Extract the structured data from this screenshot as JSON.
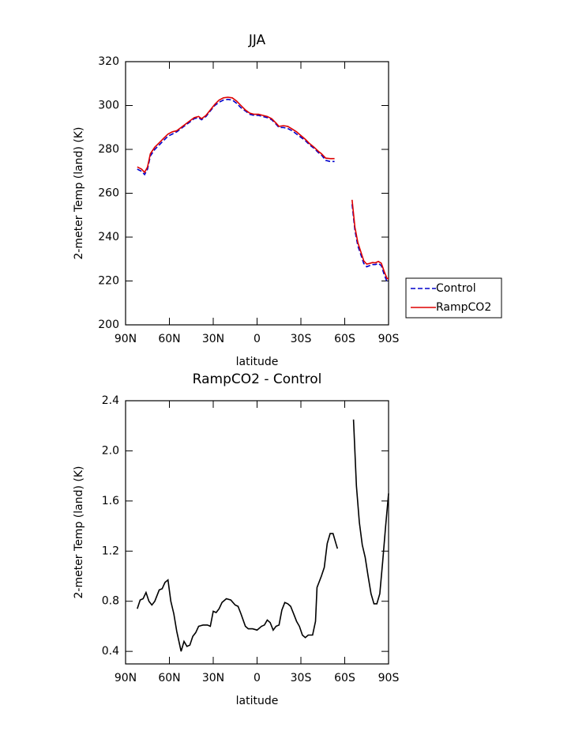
{
  "chart_data": [
    {
      "type": "line",
      "title": "JJA",
      "x_label": "latitude",
      "y_label": "2-meter Temp (land) (K)",
      "x": [
        82,
        79,
        77,
        75,
        73,
        70,
        67,
        64,
        61,
        58,
        55,
        52,
        49,
        46,
        43,
        40,
        38,
        35,
        32,
        29,
        26,
        23,
        20,
        17,
        14,
        11,
        8,
        5,
        2,
        -1,
        -4,
        -7,
        -10,
        -13,
        -15,
        -18,
        -21,
        -24,
        -27,
        -30,
        -33,
        -36,
        -39,
        -42,
        -44,
        -47,
        -50,
        -53,
        -58,
        -65,
        -67,
        -69,
        -71,
        -73,
        -75,
        -77,
        -79,
        -81,
        -83,
        -85,
        -87,
        -89,
        -90
      ],
      "series": [
        {
          "name": "Control",
          "color": "#0000cc",
          "linestyle": "dashed",
          "values": [
            271,
            270,
            268.5,
            271,
            277,
            280,
            282,
            284,
            286,
            287,
            288,
            289.5,
            291,
            292.5,
            294,
            294.5,
            293.5,
            295,
            297.5,
            300,
            301.5,
            302.5,
            302.8,
            302.5,
            301,
            299,
            297.5,
            296,
            295.5,
            295.5,
            295,
            294.5,
            293.5,
            291.5,
            290,
            290,
            289.5,
            288.5,
            287,
            285.5,
            284,
            282,
            280.5,
            278.5,
            277.5,
            275,
            274.5,
            274.5,
            null,
            255,
            243,
            236,
            232,
            228,
            226.5,
            227,
            227.5,
            227.5,
            228,
            227,
            223,
            219.5,
            219.5
          ]
        },
        {
          "name": "RampCO2",
          "color": "#dd0000",
          "linestyle": "solid",
          "values": [
            272,
            271,
            269.5,
            272,
            278,
            281,
            283,
            285,
            287,
            288,
            288.5,
            290,
            291.5,
            293,
            294.5,
            295,
            294,
            295.5,
            298,
            300.5,
            302.5,
            303.5,
            303.8,
            303.5,
            302,
            300,
            298,
            296.5,
            296,
            296,
            295.5,
            295,
            294,
            292,
            290.5,
            290.8,
            290.5,
            289.3,
            288,
            286.3,
            284.6,
            282.6,
            281,
            279.1,
            278.1,
            276,
            275.8,
            275.8,
            null,
            257,
            244.5,
            237.5,
            233.3,
            229.2,
            227.7,
            228,
            228.4,
            228.3,
            228.9,
            228.1,
            224.4,
            221,
            221.2
          ]
        }
      ],
      "xlim": [
        90,
        -90
      ],
      "xticks": [
        {
          "value": 90,
          "label": "90N"
        },
        {
          "value": 60,
          "label": "60N"
        },
        {
          "value": 30,
          "label": "30N"
        },
        0,
        {
          "value": -30,
          "label": "30S"
        },
        {
          "value": -60,
          "label": "60S"
        },
        {
          "value": -90,
          "label": "90S"
        }
      ],
      "ylim": [
        200,
        320
      ],
      "yticks": [
        200,
        220,
        240,
        260,
        280,
        300,
        320
      ],
      "legend": "right"
    },
    {
      "type": "line",
      "title": "RampCO2 - Control",
      "x_label": "latitude",
      "y_label": "2-meter Temp (land) (K)",
      "x": [
        82,
        80,
        78,
        76,
        74,
        72,
        70,
        67,
        65,
        63,
        61,
        59,
        57,
        55,
        52,
        50,
        48,
        46,
        44,
        42,
        40,
        37,
        34,
        32,
        30,
        28,
        26,
        24,
        21,
        18,
        15,
        13,
        11,
        8,
        6,
        3,
        0,
        -3,
        -5,
        -7,
        -9,
        -11,
        -13,
        -15,
        -17,
        -19,
        -21,
        -23,
        -25,
        -27,
        -29,
        -31,
        -33,
        -35,
        -38,
        -40,
        -41,
        -44,
        -46,
        -48,
        -50,
        -52,
        -54,
        -55,
        -60,
        -66,
        -68,
        -70,
        -72,
        -74,
        -76,
        -78,
        -80,
        -82,
        -84,
        -86,
        -88,
        -90
      ],
      "series": [
        {
          "color": "#000000",
          "linestyle": "solid",
          "values": [
            0.74,
            0.81,
            0.82,
            0.87,
            0.8,
            0.77,
            0.8,
            0.89,
            0.9,
            0.95,
            0.97,
            0.8,
            0.7,
            0.56,
            0.4,
            0.48,
            0.44,
            0.45,
            0.52,
            0.55,
            0.6,
            0.61,
            0.61,
            0.6,
            0.72,
            0.71,
            0.74,
            0.79,
            0.82,
            0.81,
            0.77,
            0.76,
            0.7,
            0.6,
            0.58,
            0.58,
            0.57,
            0.6,
            0.61,
            0.65,
            0.63,
            0.57,
            0.6,
            0.61,
            0.73,
            0.79,
            0.78,
            0.76,
            0.7,
            0.64,
            0.6,
            0.53,
            0.51,
            0.53,
            0.53,
            0.64,
            0.91,
            1.0,
            1.07,
            1.26,
            1.34,
            1.34,
            1.26,
            1.22,
            null,
            2.25,
            1.72,
            1.43,
            1.25,
            1.15,
            1.0,
            0.86,
            0.78,
            0.78,
            0.86,
            1.12,
            1.4,
            1.66
          ]
        }
      ],
      "xlim": [
        90,
        -90
      ],
      "xticks": [
        {
          "value": 90,
          "label": "90N"
        },
        {
          "value": 60,
          "label": "60N"
        },
        {
          "value": 30,
          "label": "30N"
        },
        0,
        {
          "value": -30,
          "label": "30S"
        },
        {
          "value": -60,
          "label": "60S"
        },
        {
          "value": -90,
          "label": "90S"
        }
      ],
      "ylim": [
        0.3,
        2.4
      ],
      "yticks": [
        {
          "value": 0.4,
          "label": "0.4"
        },
        {
          "value": 0.8,
          "label": "0.8"
        },
        {
          "value": 1.2,
          "label": "1.2"
        },
        {
          "value": 1.6,
          "label": "1.6"
        },
        {
          "value": 2,
          "label": "2.0"
        },
        {
          "value": 2.4,
          "label": "2.4"
        }
      ]
    }
  ]
}
